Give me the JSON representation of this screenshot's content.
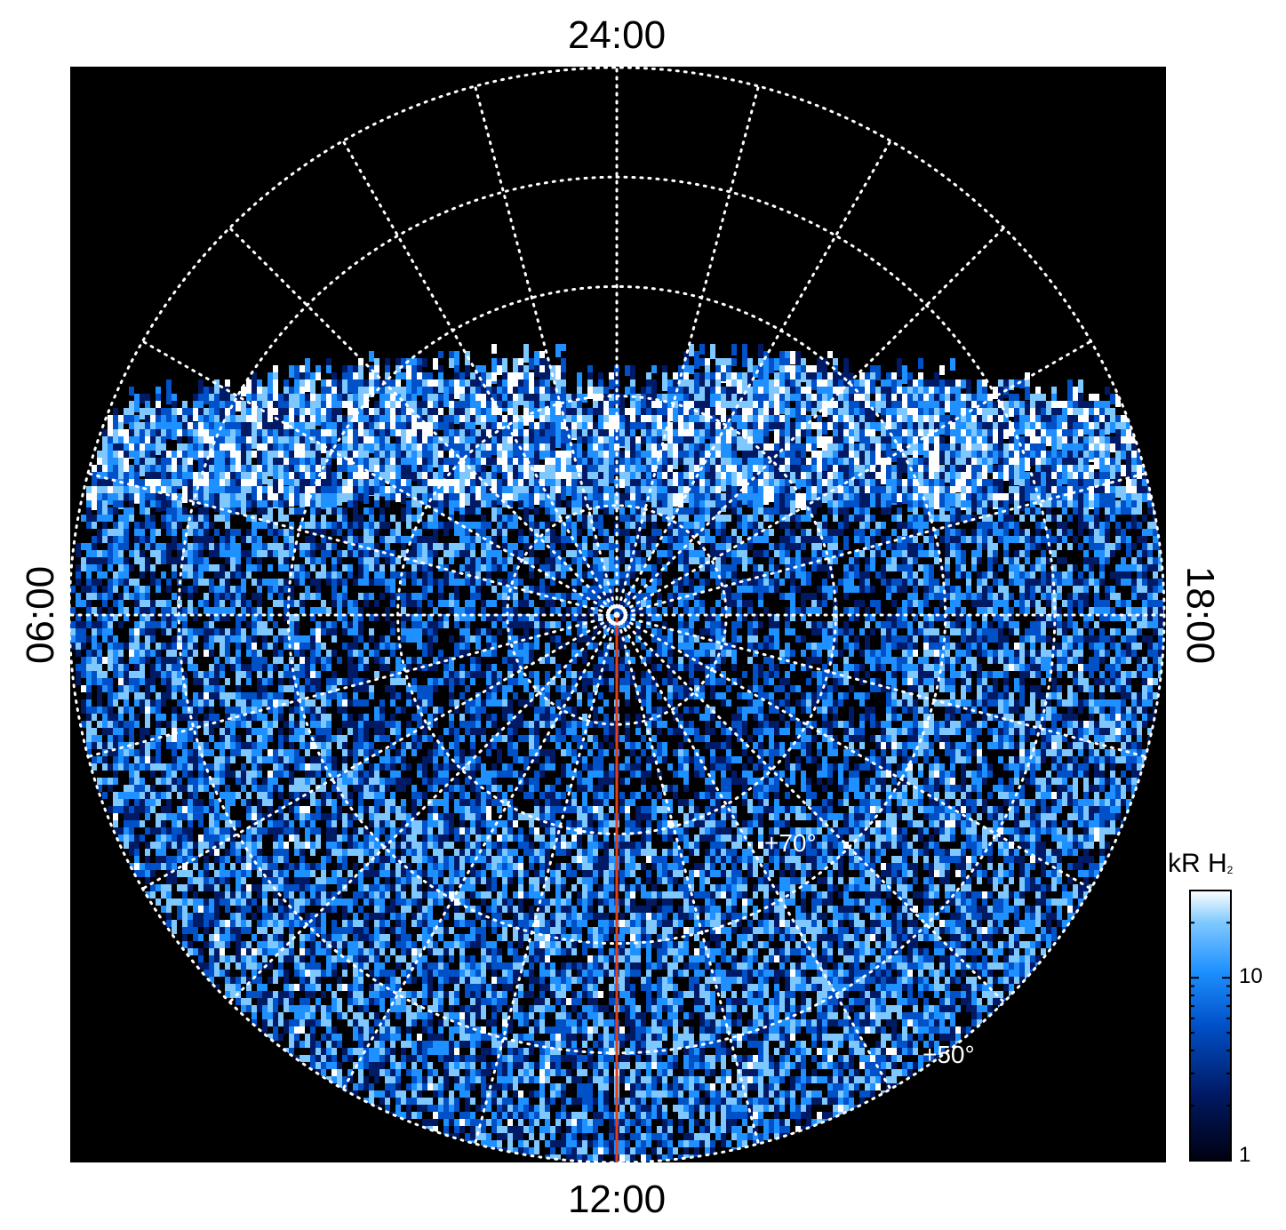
{
  "chart_data": {
    "type": "heatmap",
    "projection": "polar",
    "pole_marker": "circle-dot",
    "local_time_labels": {
      "top": "24:00",
      "bottom": "12:00",
      "left": "06:00",
      "right": "18:00"
    },
    "latitude_labels": [
      {
        "text": "+70°",
        "latitude": 70
      },
      {
        "text": "+50°",
        "latitude": 50
      }
    ],
    "latitude_grid": [
      80,
      70,
      60,
      50,
      40
    ],
    "longitude_grid_step_deg": 15,
    "colorbar": {
      "title": "kR H",
      "title_sub": "2",
      "scale": "log",
      "range": [
        1,
        30
      ],
      "tick_labels": [
        "10",
        "1"
      ],
      "tick_values": [
        10,
        1
      ],
      "colors": [
        "#000010",
        "#001a66",
        "#0050c8",
        "#1e90ff",
        "#7ec8ff",
        "#ffffff"
      ]
    },
    "meridian_line": {
      "local_time": "12:00",
      "color": "#e0401a"
    },
    "grid_color": "#ffffff",
    "background": "#000000"
  }
}
